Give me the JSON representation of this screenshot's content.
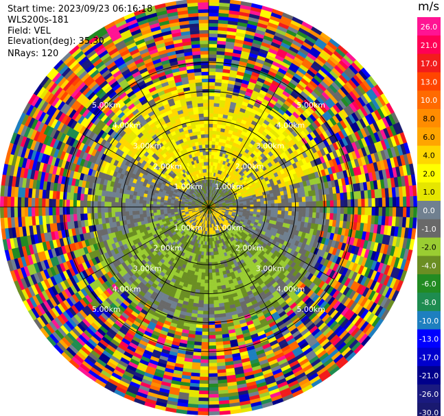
{
  "header": {
    "start_time": "Start time: 2023/09/23 06:16:18",
    "site": "WLS200s-181",
    "field": "Field: VEL",
    "elevation": "Elevation(deg): 35.30",
    "nrays": "NRays: 120"
  },
  "range_rings_km": [
    1,
    2,
    3,
    4,
    5
  ],
  "range_ring_labels": [
    "1.00km",
    "2.00km",
    "3.00km",
    "4.00km",
    "5.00km"
  ],
  "colorbar": {
    "unit": "m/s",
    "ticks": [
      "26.0",
      "21.0",
      "17.0",
      "13.0",
      "10.0",
      "8.0",
      "6.0",
      "4.0",
      "2.0",
      "1.0",
      "0.0",
      "-1.0",
      "-2.0",
      "-4.0",
      "-6.0",
      "-8.0",
      "-10.0",
      "-13.0",
      "-17.0",
      "-21.0",
      "-26.0",
      "-30.0"
    ],
    "colors": [
      "#ff1493",
      "#ff0055",
      "#f21c1c",
      "#ff4500",
      "#ff6a00",
      "#ff8c00",
      "#ffa500",
      "#ffd700",
      "#ffff00",
      "#e6e600",
      "#708090",
      "#696969",
      "#9acd32",
      "#6b8e23",
      "#228b22",
      "#1e8c50",
      "#1e7fbf",
      "#0000ff",
      "#0000cd",
      "#00008b",
      "#1a1a80",
      "#191970"
    ]
  }
}
